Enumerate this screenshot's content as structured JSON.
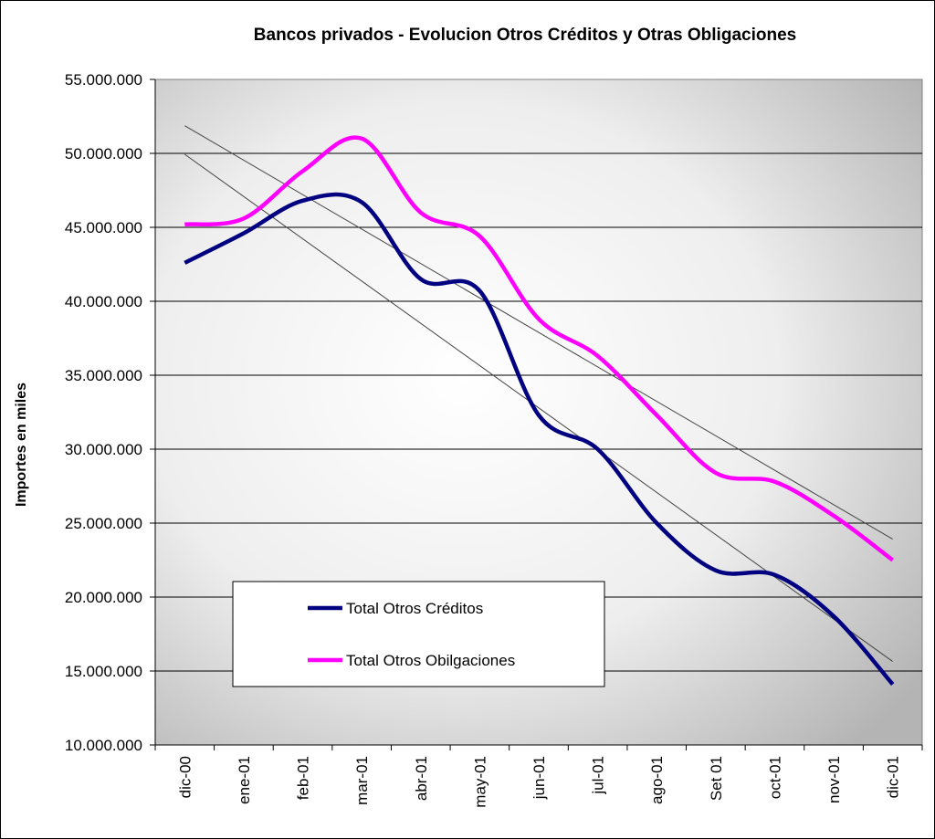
{
  "chart_data": {
    "type": "line",
    "title": "Bancos privados - Evolucion Otros Créditos y Otras Obligaciones",
    "y_label": "Importes en miles",
    "categories": [
      "dic-00",
      "ene-01",
      "feb-01",
      "mar-01",
      "abr-01",
      "may-01",
      "jun-01",
      "jul-01",
      "ago-01",
      "Set 01",
      "oct-01",
      "nov-01",
      "dic-01"
    ],
    "series": [
      {
        "name": "Total Otros Créditos",
        "color": "#000080",
        "values": [
          42600000,
          44600000,
          46800000,
          46700000,
          41500000,
          40700000,
          32300000,
          30000000,
          25000000,
          21800000,
          21500000,
          18700000,
          14100000
        ]
      },
      {
        "name": "Total Otros Obilgaciones",
        "color": "#ff00ff",
        "values": [
          45200000,
          45600000,
          48800000,
          51000000,
          46000000,
          44400000,
          38800000,
          36300000,
          32300000,
          28400000,
          27800000,
          25500000,
          22500000
        ]
      }
    ],
    "trendline": true,
    "ylim": [
      10000000,
      55000000
    ],
    "yticks": [
      {
        "value": 10000000,
        "label": "10.000.000"
      },
      {
        "value": 15000000,
        "label": "15.000.000"
      },
      {
        "value": 20000000,
        "label": "20.000.000"
      },
      {
        "value": 25000000,
        "label": "25.000.000"
      },
      {
        "value": 30000000,
        "label": "30.000.000"
      },
      {
        "value": 35000000,
        "label": "35.000.000"
      },
      {
        "value": 40000000,
        "label": "40.000.000"
      },
      {
        "value": 45000000,
        "label": "45.000.000"
      },
      {
        "value": 50000000,
        "label": "50.000.000"
      },
      {
        "value": 55000000,
        "label": "55.000.000"
      }
    ],
    "grid": true
  }
}
